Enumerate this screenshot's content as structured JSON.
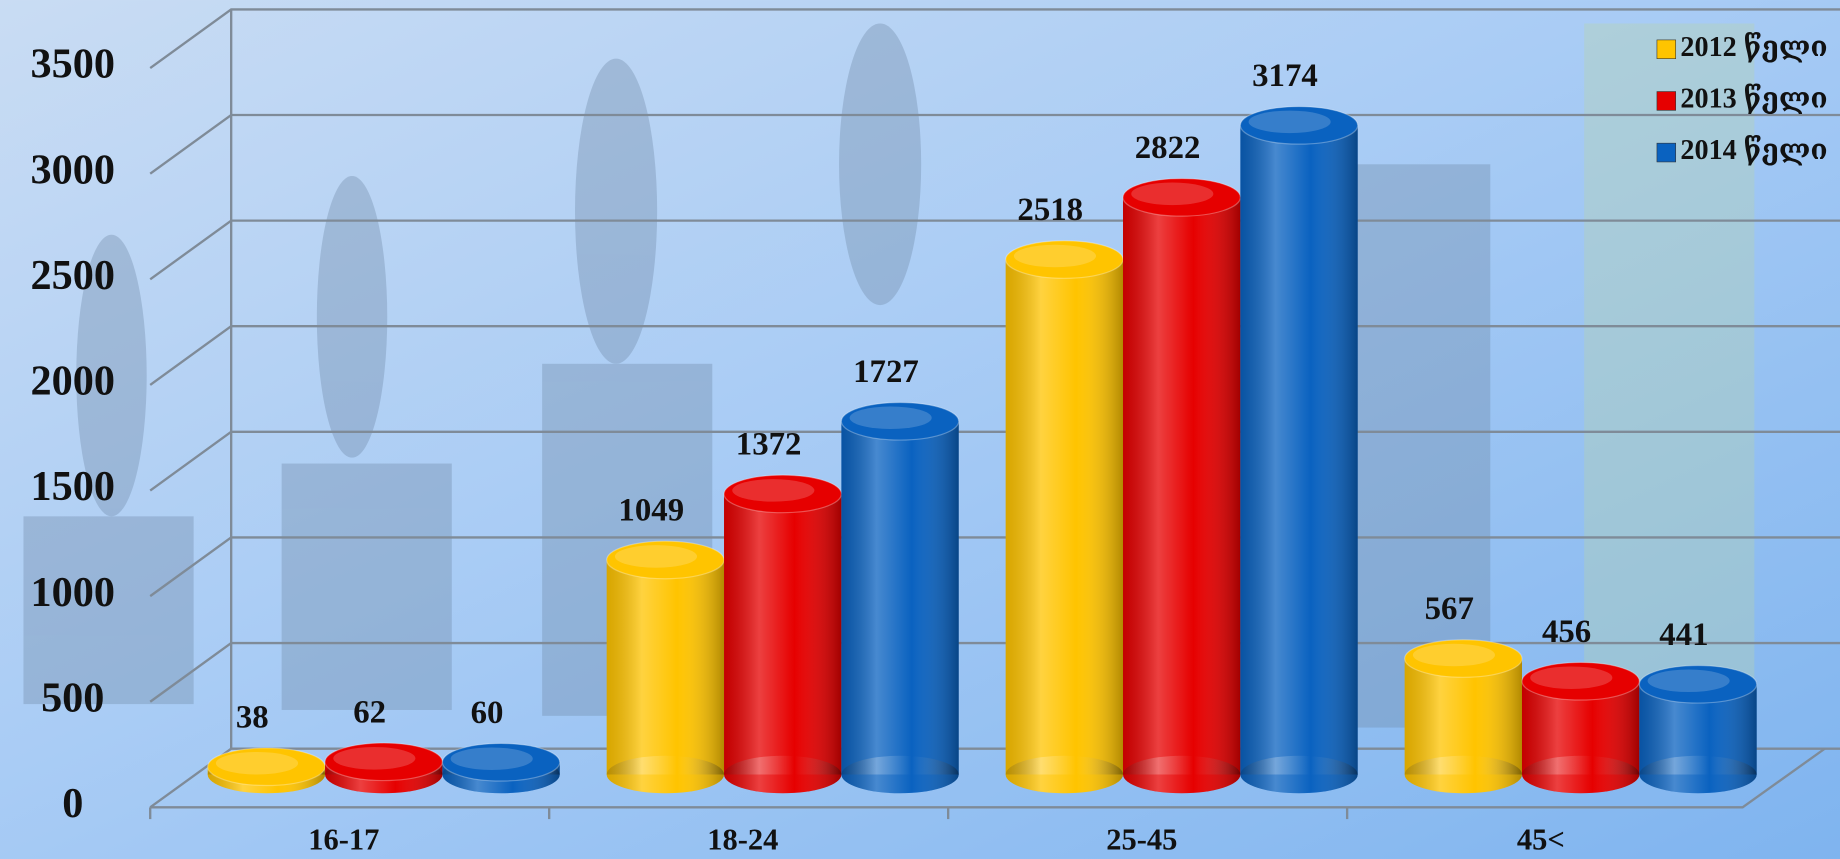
{
  "chart_data": {
    "type": "bar3d",
    "categories": [
      "16-17",
      "18-24",
      "25-45",
      "45<"
    ],
    "series": [
      {
        "name": "2012 წელი",
        "color": "#ffc400",
        "values": [
          38,
          1049,
          2518,
          567
        ]
      },
      {
        "name": "2013 წელი",
        "color": "#e60000",
        "values": [
          62,
          1372,
          2822,
          456
        ]
      },
      {
        "name": "2014 წელი",
        "color": "#0a62c0",
        "values": [
          60,
          1727,
          3174,
          441
        ]
      }
    ],
    "ylim": [
      0,
      3500
    ],
    "yticks": [
      0,
      500,
      1000,
      1500,
      2000,
      2500,
      3000,
      3500
    ],
    "grid": true,
    "legend": "top-right"
  }
}
